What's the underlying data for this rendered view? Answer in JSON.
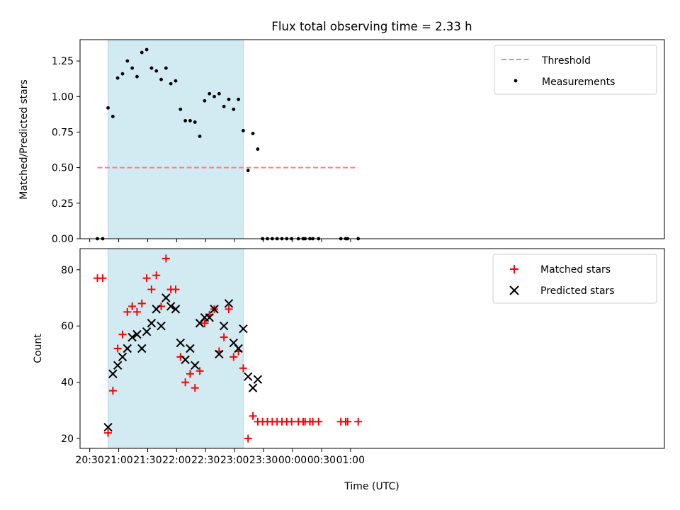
{
  "chart_data": {
    "type": "scatter",
    "title": "Flux total observing time = 2.33 h",
    "x_unit": "minutes since 20:30 UTC (axis labels are clock times)",
    "shared_xlabel": "Time (UTC)",
    "shared_xlim": [
      -10,
      595
    ],
    "xticks": [
      {
        "x": 0,
        "label": "20:30"
      },
      {
        "x": 30,
        "label": "21:00"
      },
      {
        "x": 60,
        "label": "21:30"
      },
      {
        "x": 90,
        "label": "22:00"
      },
      {
        "x": 120,
        "label": "22:30"
      },
      {
        "x": 150,
        "label": "23:00"
      },
      {
        "x": 180,
        "label": "23:30"
      },
      {
        "x": 210,
        "label": "00:00"
      },
      {
        "x": 240,
        "label": "00:30"
      },
      {
        "x": 270,
        "label": "01:00"
      }
    ],
    "shaded_span": {
      "x_start": 19.0,
      "x_end": 159.0,
      "color": "#add8e6"
    },
    "panels": [
      {
        "id": "ratio",
        "ylabel": "Matched/Predicted stars",
        "ylim": [
          0.0,
          1.4
        ],
        "yticks": [
          {
            "y": 0.0,
            "label": "0.00"
          },
          {
            "y": 0.25,
            "label": "0.25"
          },
          {
            "y": 0.5,
            "label": "0.50"
          },
          {
            "y": 0.75,
            "label": "0.75"
          },
          {
            "y": 1.0,
            "label": "1.00"
          },
          {
            "y": 1.25,
            "label": "1.25"
          }
        ],
        "legend_position": "upper right",
        "threshold": {
          "name": "Threshold",
          "y": 0.5,
          "x_start": 8.0,
          "x_end": 278.0,
          "color": "#ff7f7f"
        },
        "series": [
          {
            "name": "Measurements",
            "marker": "dot",
            "color": "#000000",
            "points": [
              [
                8,
                0.0
              ],
              [
                13.5,
                0.0
              ],
              [
                19,
                0.92
              ],
              [
                24,
                0.86
              ],
              [
                29,
                1.13
              ],
              [
                34,
                1.16
              ],
              [
                39,
                1.25
              ],
              [
                44,
                1.2
              ],
              [
                49,
                1.14
              ],
              [
                54,
                1.31
              ],
              [
                59,
                1.33
              ],
              [
                64,
                1.2
              ],
              [
                69,
                1.18
              ],
              [
                74,
                1.12
              ],
              [
                79,
                1.2
              ],
              [
                84,
                1.09
              ],
              [
                89,
                1.11
              ],
              [
                94,
                0.91
              ],
              [
                99,
                0.83
              ],
              [
                104,
                0.83
              ],
              [
                109,
                0.82
              ],
              [
                114,
                0.72
              ],
              [
                119,
                0.97
              ],
              [
                124,
                1.02
              ],
              [
                129,
                1.0
              ],
              [
                134,
                1.02
              ],
              [
                139,
                0.93
              ],
              [
                144,
                0.98
              ],
              [
                149,
                0.91
              ],
              [
                154,
                0.98
              ],
              [
                159,
                0.76
              ],
              [
                164,
                0.48
              ],
              [
                169,
                0.74
              ],
              [
                174,
                0.63
              ],
              [
                179,
                0.0
              ],
              [
                184,
                0.0
              ],
              [
                189,
                0.0
              ],
              [
                194,
                0.0
              ],
              [
                199,
                0.0
              ],
              [
                204,
                0.0
              ],
              [
                209,
                0.0
              ],
              [
                216,
                0.0
              ],
              [
                221,
                0.0
              ],
              [
                223,
                0.0
              ],
              [
                228,
                0.0
              ],
              [
                231,
                0.0
              ],
              [
                237,
                0.0
              ],
              [
                260,
                0.0
              ],
              [
                265,
                0.0
              ],
              [
                267,
                0.0
              ],
              [
                278,
                0.0
              ]
            ]
          }
        ]
      },
      {
        "id": "count",
        "ylabel": "Count",
        "ylim": [
          16.5,
          87.5
        ],
        "yticks": [
          {
            "y": 20,
            "label": "20"
          },
          {
            "y": 40,
            "label": "40"
          },
          {
            "y": 60,
            "label": "60"
          },
          {
            "y": 80,
            "label": "80"
          }
        ],
        "legend_position": "upper right",
        "series": [
          {
            "name": "Matched stars",
            "marker": "plus",
            "color": "#ff0000",
            "points": [
              [
                8,
                77
              ],
              [
                13.5,
                77
              ],
              [
                19,
                22
              ],
              [
                24,
                37
              ],
              [
                29,
                52
              ],
              [
                34,
                57
              ],
              [
                39,
                65
              ],
              [
                44,
                67
              ],
              [
                49,
                65
              ],
              [
                54,
                68
              ],
              [
                59,
                77
              ],
              [
                64,
                73
              ],
              [
                69,
                78
              ],
              [
                74,
                67
              ],
              [
                79,
                84
              ],
              [
                84,
                73
              ],
              [
                89,
                73
              ],
              [
                94,
                49
              ],
              [
                99,
                40
              ],
              [
                104,
                43
              ],
              [
                109,
                38
              ],
              [
                114,
                44
              ],
              [
                119,
                61
              ],
              [
                124,
                64
              ],
              [
                129,
                66
              ],
              [
                134,
                51
              ],
              [
                139,
                56
              ],
              [
                144,
                66
              ],
              [
                149,
                49
              ],
              [
                154,
                51
              ],
              [
                159,
                45
              ],
              [
                164,
                20
              ],
              [
                169,
                28
              ],
              [
                174,
                26
              ],
              [
                179,
                26
              ],
              [
                184,
                26
              ],
              [
                189,
                26
              ],
              [
                194,
                26
              ],
              [
                199,
                26
              ],
              [
                204,
                26
              ],
              [
                209,
                26
              ],
              [
                216,
                26
              ],
              [
                221,
                26
              ],
              [
                223,
                26
              ],
              [
                228,
                26
              ],
              [
                231,
                26
              ],
              [
                237,
                26
              ],
              [
                260,
                26
              ],
              [
                265,
                26
              ],
              [
                267,
                26
              ],
              [
                278,
                26
              ]
            ]
          },
          {
            "name": "Predicted stars",
            "marker": "x",
            "color": "#000000",
            "points": [
              [
                19,
                24
              ],
              [
                24,
                43
              ],
              [
                29,
                46
              ],
              [
                34,
                49
              ],
              [
                39,
                52
              ],
              [
                44,
                56
              ],
              [
                49,
                57
              ],
              [
                54,
                52
              ],
              [
                59,
                58
              ],
              [
                64,
                61
              ],
              [
                69,
                66
              ],
              [
                74,
                60
              ],
              [
                79,
                70
              ],
              [
                84,
                67
              ],
              [
                89,
                66
              ],
              [
                94,
                54
              ],
              [
                99,
                48
              ],
              [
                104,
                52
              ],
              [
                109,
                46
              ],
              [
                114,
                61
              ],
              [
                119,
                63
              ],
              [
                124,
                63
              ],
              [
                129,
                66
              ],
              [
                134,
                50
              ],
              [
                139,
                60
              ],
              [
                144,
                68
              ],
              [
                149,
                54
              ],
              [
                154,
                52
              ],
              [
                159,
                59
              ],
              [
                164,
                42
              ],
              [
                169,
                38
              ],
              [
                174,
                41
              ]
            ]
          }
        ]
      }
    ]
  }
}
